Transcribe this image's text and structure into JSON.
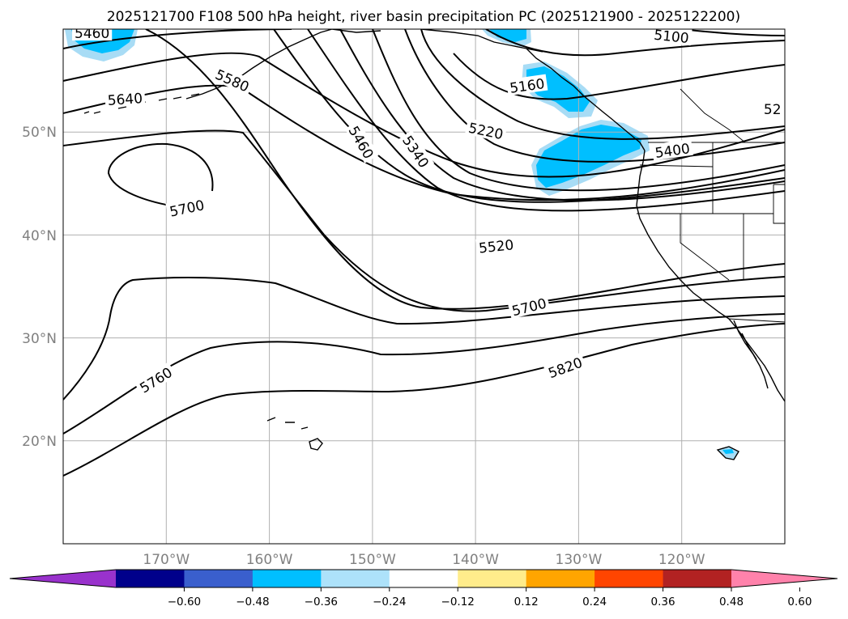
{
  "title": "2025121700 F108 500 hPa height, river basin precipitation PC (2025121900 - 2025122200)",
  "map": {
    "lon_range": [
      -180,
      -110
    ],
    "lat_range": [
      10,
      60
    ],
    "lon_ticks": [
      {
        "value": -170,
        "label": "170°W"
      },
      {
        "value": -160,
        "label": "160°W"
      },
      {
        "value": -150,
        "label": "150°W"
      },
      {
        "value": -140,
        "label": "140°W"
      },
      {
        "value": -130,
        "label": "130°W"
      },
      {
        "value": -120,
        "label": "120°W"
      }
    ],
    "lat_ticks": [
      {
        "value": 20,
        "label": "20°N"
      },
      {
        "value": 30,
        "label": "30°N"
      },
      {
        "value": 40,
        "label": "40°N"
      },
      {
        "value": 50,
        "label": "50°N"
      }
    ],
    "grid": true,
    "fill_colors": {
      "light": "#a8dcf5",
      "main": "#00bfff"
    },
    "contour_labels": [
      {
        "text": "5460",
        "lon": -177.2,
        "lat": 59.6,
        "rot": 0
      },
      {
        "text": "5580",
        "lon": -163.6,
        "lat": 55.0,
        "rot": 24
      },
      {
        "text": "5640",
        "lon": -174.0,
        "lat": 53.2,
        "rot": -4
      },
      {
        "text": "5700",
        "lon": -168.0,
        "lat": 42.6,
        "rot": -12
      },
      {
        "text": "5460",
        "lon": -151.1,
        "lat": 49.0,
        "rot": 60
      },
      {
        "text": "5340",
        "lon": -145.8,
        "lat": 48.1,
        "rot": 56
      },
      {
        "text": "5160",
        "lon": -135.0,
        "lat": 54.5,
        "rot": -8
      },
      {
        "text": "5220",
        "lon": -139.0,
        "lat": 50.1,
        "rot": 12
      },
      {
        "text": "5100",
        "lon": -121.0,
        "lat": 59.3,
        "rot": 6
      },
      {
        "text": "52",
        "lon": -111.2,
        "lat": 52.2,
        "rot": 0
      },
      {
        "text": "5400",
        "lon": -120.9,
        "lat": 48.2,
        "rot": -8
      },
      {
        "text": "5520",
        "lon": -138.0,
        "lat": 38.9,
        "rot": -6
      },
      {
        "text": "5700",
        "lon": -134.8,
        "lat": 33.0,
        "rot": -14
      },
      {
        "text": "5820",
        "lon": -131.3,
        "lat": 27.1,
        "rot": -20
      },
      {
        "text": "5760",
        "lon": -171.0,
        "lat": 25.9,
        "rot": -32
      }
    ]
  },
  "colorbar": {
    "colors": [
      "#9932cc",
      "#00008b",
      "#3a5fcd",
      "#00bfff",
      "#ade2fa",
      "#ffffff",
      "#ffec8b",
      "#ffa500",
      "#ff4500",
      "#b22222",
      "#ff82ab"
    ],
    "tick_labels": [
      "−0.60",
      "−0.48",
      "−0.36",
      "−0.24",
      "−0.12",
      "0.12",
      "0.24",
      "0.36",
      "0.48",
      "0.60"
    ]
  }
}
